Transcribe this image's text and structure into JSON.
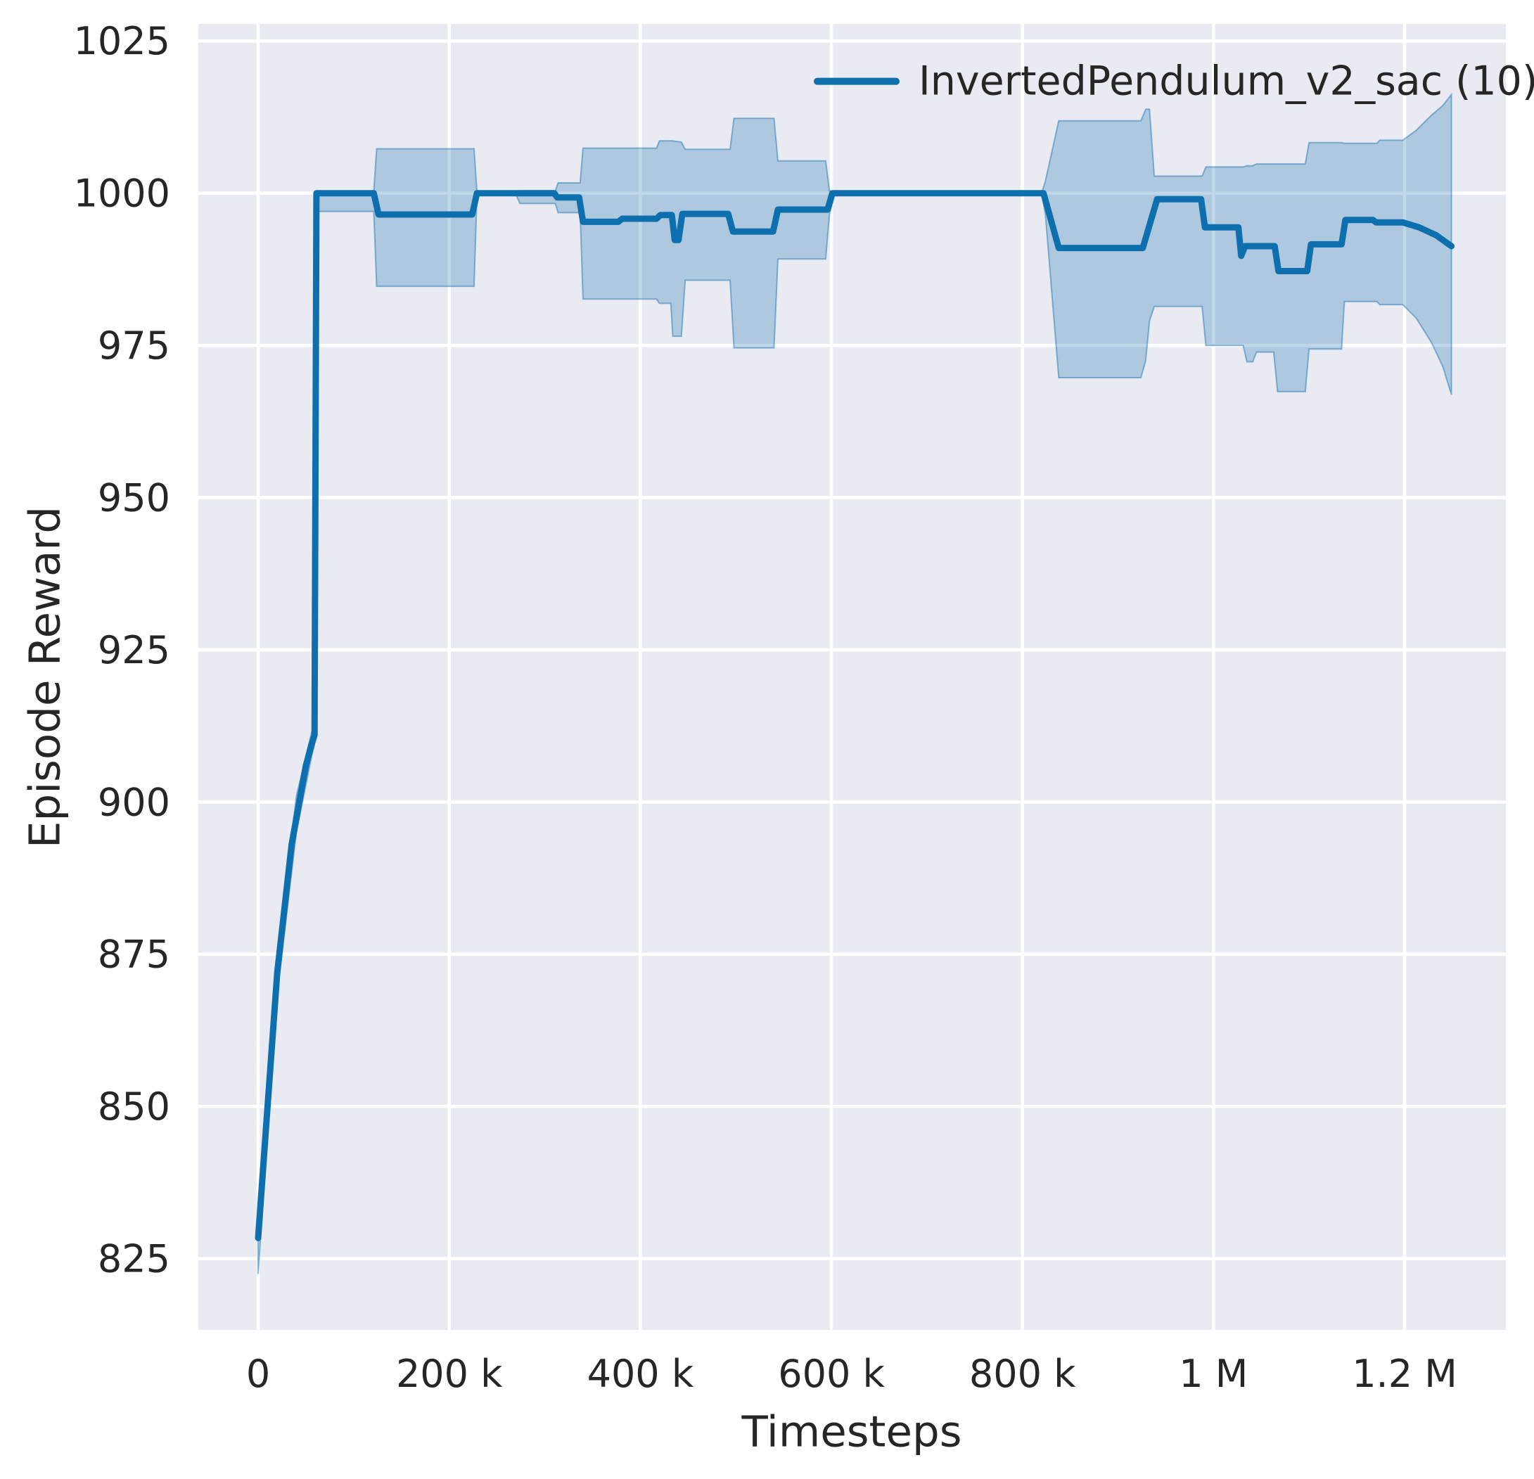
{
  "chart_data": {
    "type": "line",
    "title": "",
    "xlabel": "Timesteps",
    "ylabel": "Episode Reward",
    "legend_label": "InvertedPendulum_v2_sac (10)",
    "legend_position": "upper right",
    "grid": true,
    "xlim": [
      -62600,
      1306000
    ],
    "ylim": [
      813.3,
      1027.8
    ],
    "x_ticks": [
      {
        "value": 0,
        "label": "0"
      },
      {
        "value": 200000,
        "label": "200 k"
      },
      {
        "value": 400000,
        "label": "400 k"
      },
      {
        "value": 600000,
        "label": "600 k"
      },
      {
        "value": 800000,
        "label": "800 k"
      },
      {
        "value": 1000000,
        "label": "1 M"
      },
      {
        "value": 1200000,
        "label": "1.2 M"
      }
    ],
    "y_ticks": [
      {
        "value": 825,
        "label": "825"
      },
      {
        "value": 850,
        "label": "850"
      },
      {
        "value": 875,
        "label": "875"
      },
      {
        "value": 900,
        "label": "900"
      },
      {
        "value": 925,
        "label": "925"
      },
      {
        "value": 950,
        "label": "950"
      },
      {
        "value": 975,
        "label": "975"
      },
      {
        "value": 1000,
        "label": "1000"
      },
      {
        "value": 1025,
        "label": "1025"
      }
    ],
    "series": [
      {
        "name": "InvertedPendulum_v2_sac (10)",
        "color": "#0d6fad",
        "points": [
          [
            0,
            828.4
          ],
          [
            8000,
            846
          ],
          [
            20000,
            872
          ],
          [
            35000,
            893
          ],
          [
            50000,
            906
          ],
          [
            56000,
            909.5
          ],
          [
            59000,
            911
          ],
          [
            61000,
            1000
          ],
          [
            121000,
            1000
          ],
          [
            126000,
            996.5
          ],
          [
            224000,
            996.5
          ],
          [
            229000,
            1000
          ],
          [
            310000,
            1000
          ],
          [
            313000,
            999.3
          ],
          [
            336000,
            999.3
          ],
          [
            340000,
            995.3
          ],
          [
            377000,
            995.3
          ],
          [
            381000,
            995.8
          ],
          [
            417000,
            995.8
          ],
          [
            421000,
            996.4
          ],
          [
            433000,
            996.4
          ],
          [
            436000,
            992.3
          ],
          [
            440000,
            992.3
          ],
          [
            444000,
            996.6
          ],
          [
            492000,
            996.6
          ],
          [
            497000,
            993.7
          ],
          [
            539000,
            993.7
          ],
          [
            544000,
            997.3
          ],
          [
            596000,
            997.3
          ],
          [
            601000,
            1000
          ],
          [
            822000,
            1000
          ],
          [
            838000,
            991
          ],
          [
            926000,
            991
          ],
          [
            941000,
            999
          ],
          [
            987000,
            999
          ],
          [
            991000,
            994.4
          ],
          [
            1026000,
            994.4
          ],
          [
            1029000,
            989.7
          ],
          [
            1033000,
            991.3
          ],
          [
            1064000,
            991.3
          ],
          [
            1068000,
            987.2
          ],
          [
            1098000,
            987.2
          ],
          [
            1102000,
            991.6
          ],
          [
            1134000,
            991.6
          ],
          [
            1138000,
            995.6
          ],
          [
            1167000,
            995.6
          ],
          [
            1170000,
            995.2
          ],
          [
            1198000,
            995.2
          ],
          [
            1215000,
            994.4
          ],
          [
            1233000,
            993.1
          ],
          [
            1249000,
            991.3
          ]
        ],
        "band": [
          [
            0,
            822.5,
            833
          ],
          [
            20000,
            868.5,
            875.5
          ],
          [
            40000,
            895,
            901
          ],
          [
            56000,
            907.5,
            911.5
          ],
          [
            59000,
            909.5,
            912
          ],
          [
            61000,
            997,
            1000.3
          ],
          [
            121000,
            997,
            1000.3
          ],
          [
            124000,
            984.7,
            1007.3
          ],
          [
            226000,
            984.7,
            1007.3
          ],
          [
            229000,
            999.6,
            1000.2
          ],
          [
            270000,
            999.7,
            1000.2
          ],
          [
            274000,
            998.3,
            1000.4
          ],
          [
            311000,
            998.3,
            1000.4
          ],
          [
            314000,
            996.8,
            1001.7
          ],
          [
            337000,
            996.8,
            1001.7
          ],
          [
            340000,
            982.6,
            1007.4
          ],
          [
            417000,
            982.6,
            1007.4
          ],
          [
            420000,
            981.9,
            1008.6
          ],
          [
            432000,
            981.9,
            1008.6
          ],
          [
            434000,
            976.5,
            1008.6
          ],
          [
            443000,
            976.5,
            1008.4
          ],
          [
            447000,
            985.7,
            1007.2
          ],
          [
            494000,
            985.7,
            1007.2
          ],
          [
            498000,
            974.6,
            1012.3
          ],
          [
            540000,
            974.6,
            1012.3
          ],
          [
            544000,
            989.2,
            1005.3
          ],
          [
            594000,
            989.2,
            1005.3
          ],
          [
            598000,
            996.5,
            1000.4
          ],
          [
            603000,
            999.5,
            1000.2
          ],
          [
            607000,
            1000,
            1000
          ],
          [
            820000,
            1000,
            1000
          ],
          [
            824000,
            996.5,
            1002
          ],
          [
            838000,
            969.7,
            1011.9
          ],
          [
            924000,
            969.7,
            1011.9
          ],
          [
            929000,
            972.5,
            1013.8
          ],
          [
            933000,
            979,
            1013.8
          ],
          [
            938000,
            981.4,
            1002.8
          ],
          [
            988000,
            981.4,
            1002.8
          ],
          [
            992000,
            975,
            1004.3
          ],
          [
            1031000,
            975,
            1004.3
          ],
          [
            1035000,
            972.3,
            1004.5
          ],
          [
            1041000,
            972.3,
            1004.5
          ],
          [
            1045000,
            973.9,
            1004.8
          ],
          [
            1063000,
            973.9,
            1004.8
          ],
          [
            1067000,
            967.4,
            1004.8
          ],
          [
            1096000,
            967.4,
            1004.8
          ],
          [
            1100000,
            974.4,
            1008.3
          ],
          [
            1134000,
            974.4,
            1008.3
          ],
          [
            1137000,
            982.2,
            1008.2
          ],
          [
            1171000,
            982.2,
            1008.2
          ],
          [
            1174000,
            981.7,
            1008.7
          ],
          [
            1198000,
            981.7,
            1008.7
          ],
          [
            1212000,
            979.5,
            1010.3
          ],
          [
            1228000,
            975.5,
            1012.8
          ],
          [
            1240000,
            971.5,
            1014.4
          ],
          [
            1249000,
            966.9,
            1016.2
          ]
        ]
      }
    ],
    "style": {
      "plot_bg": "#eaeaf2",
      "grid_color": "#ffffff",
      "line_color": "#0d6fad",
      "band_alpha": 0.27,
      "text_color": "#262626"
    }
  }
}
